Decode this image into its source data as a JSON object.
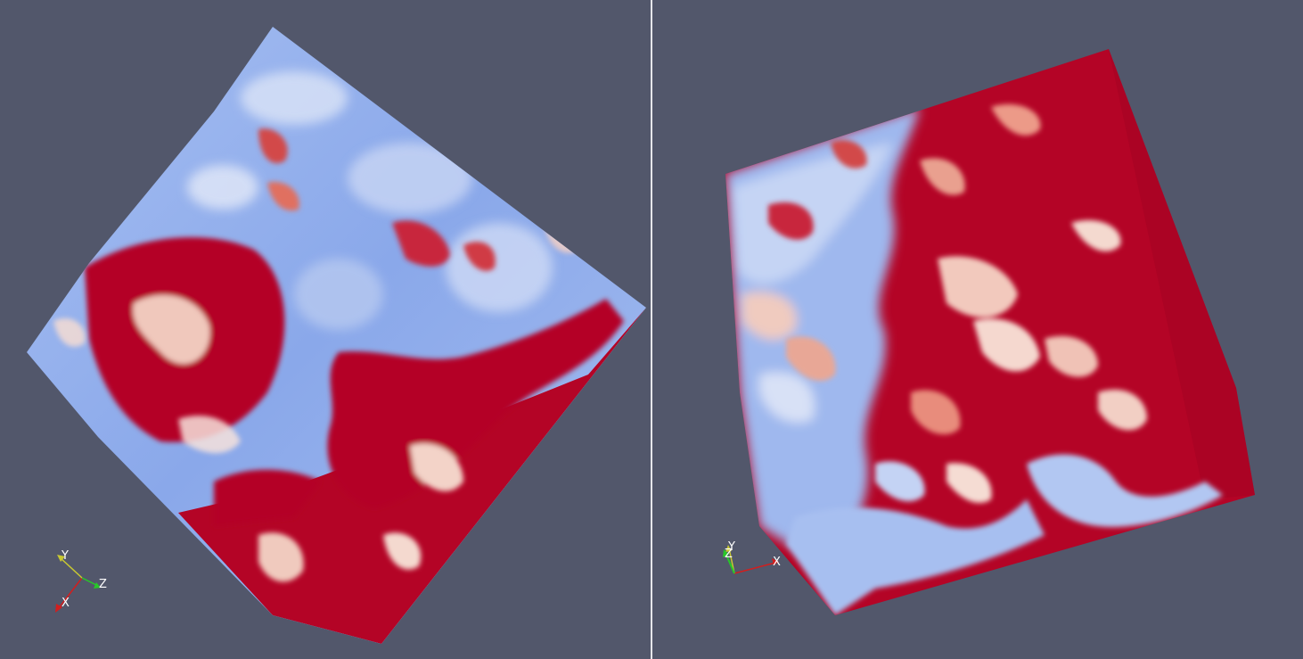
{
  "left_view": {
    "axes": {
      "labels": {
        "x": "X",
        "y": "Y",
        "z": "Z"
      }
    }
  },
  "right_view": {
    "axes": {
      "labels": {
        "x": "X",
        "y": "Y",
        "z": "Z"
      }
    }
  },
  "colors": {
    "background": "#52576b",
    "divider": "#e6e6ea",
    "colormap_low": "#7fa0e8",
    "colormap_mid": "#f2d6cc",
    "colormap_high": "#b40426",
    "axis_x": "#d21e1e",
    "axis_y": "#c8c832",
    "axis_z": "#28c828"
  }
}
